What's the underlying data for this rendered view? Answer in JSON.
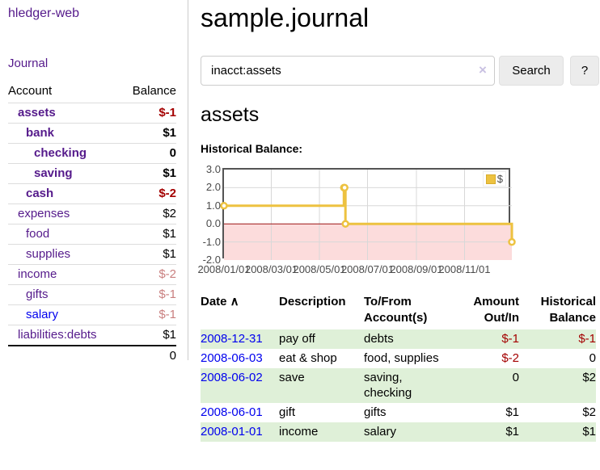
{
  "app": {
    "title": "hledger-web"
  },
  "sidebar": {
    "journal_link": "Journal",
    "accounts_table": {
      "headers": {
        "account": "Account",
        "balance": "Balance"
      },
      "rows": [
        {
          "name": "assets",
          "balance": "$-1",
          "indent": 1,
          "bold": true
        },
        {
          "name": "bank",
          "balance": "$1",
          "indent": 2,
          "bold": true
        },
        {
          "name": "checking",
          "balance": "0",
          "indent": 3,
          "bold": true
        },
        {
          "name": "saving",
          "balance": "$1",
          "indent": 3,
          "bold": true
        },
        {
          "name": "cash",
          "balance": "$-2",
          "indent": 2,
          "bold": true
        },
        {
          "name": "expenses",
          "balance": "$2",
          "indent": 1,
          "bold": false
        },
        {
          "name": "food",
          "balance": "$1",
          "indent": 2,
          "bold": false
        },
        {
          "name": "supplies",
          "balance": "$1",
          "indent": 2,
          "bold": false
        },
        {
          "name": "income",
          "balance": "$-2",
          "indent": 1,
          "bold": false
        },
        {
          "name": "gifts",
          "balance": "$-1",
          "indent": 2,
          "bold": false
        },
        {
          "name": "salary",
          "balance": "$-1",
          "indent": 2,
          "bold": false,
          "link_style": "blue"
        },
        {
          "name": "liabilities:debts",
          "balance": "$1",
          "indent": 1,
          "bold": false
        }
      ],
      "total": "0"
    }
  },
  "main": {
    "title": "sample.journal",
    "search": {
      "value": "inacct:assets",
      "clear_icon": "×",
      "button_label": "Search",
      "help_label": "?"
    },
    "account_heading": "assets",
    "chart_label": "Historical Balance:"
  },
  "chart_data": {
    "type": "line",
    "title": "Historical Balance",
    "series": [
      {
        "name": "$",
        "color": "#edc240",
        "steps": true,
        "points": [
          [
            "2008-01-01",
            1
          ],
          [
            "2008-06-01",
            2
          ],
          [
            "2008-06-02",
            2
          ],
          [
            "2008-06-03",
            0
          ],
          [
            "2008-12-31",
            -1
          ]
        ]
      }
    ],
    "x_range": [
      "2008-01-01",
      "2008-12-31"
    ],
    "y_range": [
      -2,
      3
    ],
    "x_ticks": [
      "2008/01/01",
      "2008/03/01",
      "2008/05/01",
      "2008/07/01",
      "2008/09/01",
      "2008/11/01"
    ],
    "y_ticks": [
      "3.0",
      "2.0",
      "1.0",
      "0.0",
      "-1.0",
      "-2.0"
    ],
    "legend": "$",
    "legend_position": "top-right",
    "grid": true,
    "grid_color": "#d8d8d8",
    "zero_line_color": "#9c1313",
    "negative_region_color": "#fcdcdc"
  },
  "register": {
    "sort_indicator": "∧",
    "headers": [
      {
        "lines": [
          "Date"
        ],
        "sorted": true
      },
      {
        "lines": [
          "Description"
        ]
      },
      {
        "lines": [
          "To/From",
          "Account(s)"
        ]
      },
      {
        "lines": [
          "Amount",
          "Out/In"
        ],
        "align": "right"
      },
      {
        "lines": [
          "Historical",
          "Balance"
        ],
        "align": "right"
      }
    ],
    "rows": [
      {
        "date": "2008-12-31",
        "description": "pay off",
        "accounts": "debts",
        "amount": "$-1",
        "balance": "$-1"
      },
      {
        "date": "2008-06-03",
        "description": "eat & shop",
        "accounts": "food, supplies",
        "amount": "$-2",
        "balance": "0"
      },
      {
        "date": "2008-06-02",
        "description": "save",
        "accounts": "saving, checking",
        "amount": "0",
        "balance": "$2"
      },
      {
        "date": "2008-06-01",
        "description": "gift",
        "accounts": "gifts",
        "amount": "$1",
        "balance": "$2"
      },
      {
        "date": "2008-01-01",
        "description": "income",
        "accounts": "salary",
        "amount": "$1",
        "balance": "$1"
      }
    ]
  }
}
